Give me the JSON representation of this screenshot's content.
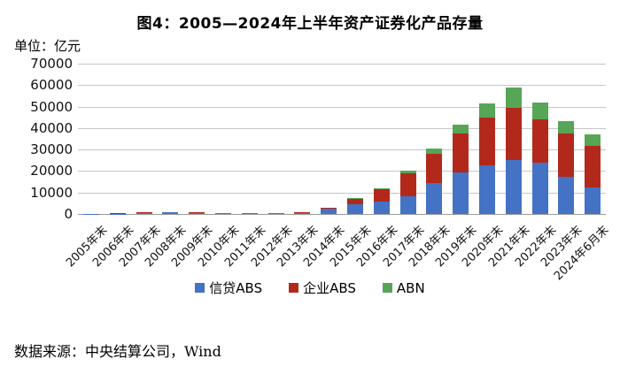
{
  "title": "图4：2005—2024年上半年资产证券化产品存量",
  "unit_label": "单位：亿元",
  "source": "数据来源：中央结算公司，Wind",
  "colors": {
    "credit_abs": "#4472c4",
    "enterprise_abs": "#b2291c",
    "abn": "#57a557",
    "gridline": "#c6c6c6",
    "axis_line": "#9a9a9a"
  },
  "chart_data": {
    "type": "bar",
    "stacked": true,
    "title": "图4：2005—2024年上半年资产证券化产品存量",
    "ylabel": "亿元",
    "xlabel": "",
    "ylim": [
      0,
      70000
    ],
    "ytick_interval": 10000,
    "ytick_labels": [
      "70000",
      "60000",
      "50000",
      "40000",
      "30000",
      "20000",
      "10000",
      "0"
    ],
    "grid": true,
    "legend_position": "bottom",
    "categories": [
      "2005年末",
      "2006年末",
      "2007年末",
      "2008年末",
      "2009年末",
      "2010年末",
      "2011年末",
      "2012年末",
      "2013年末",
      "2014年末",
      "2015年末",
      "2016年末",
      "2017年末",
      "2018年末",
      "2019年末",
      "2020年末",
      "2021年末",
      "2022年末",
      "2023年末",
      "2024年6月末"
    ],
    "series": [
      {
        "name": "信贷ABS",
        "color": "#4472c4",
        "values": [
          50,
          120,
          330,
          650,
          550,
          280,
          250,
          280,
          500,
          2300,
          4500,
          5900,
          8400,
          14300,
          19400,
          22800,
          25300,
          23900,
          17400,
          12400
        ]
      },
      {
        "name": "企业ABS",
        "color": "#b2291c",
        "values": [
          100,
          350,
          440,
          250,
          150,
          130,
          130,
          230,
          300,
          700,
          2400,
          5500,
          10600,
          13600,
          18200,
          22000,
          24300,
          20300,
          19900,
          19500
        ]
      },
      {
        "name": "ABN",
        "color": "#57a557",
        "values": [
          0,
          0,
          0,
          0,
          0,
          0,
          0,
          0,
          0,
          100,
          350,
          600,
          1100,
          2500,
          4100,
          6600,
          9300,
          7800,
          5800,
          5200
        ]
      }
    ]
  }
}
